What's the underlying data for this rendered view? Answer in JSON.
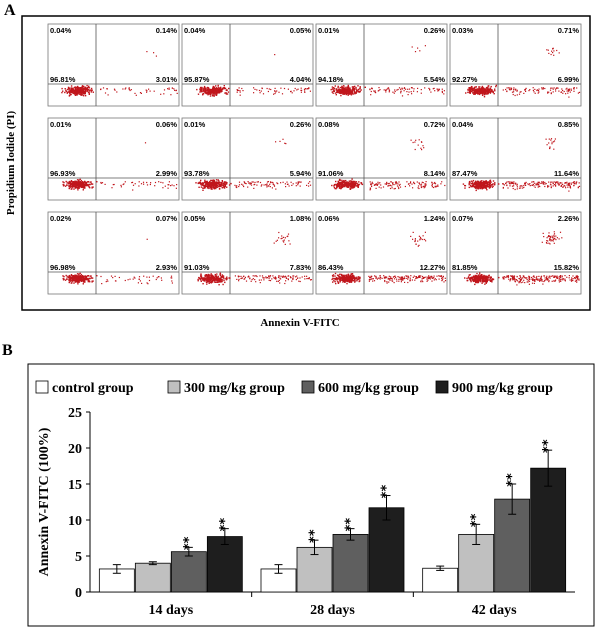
{
  "panel_a": {
    "label": "A",
    "ylabel": "Propidium Iodide (PI)",
    "xlabel": "Annexin V-FITC",
    "grid": [
      [
        {
          "ul": "0.04%",
          "ur": "0.14%",
          "ll": "96.81%",
          "lr": "3.01%"
        },
        {
          "ul": "0.04%",
          "ur": "0.05%",
          "ll": "95.87%",
          "lr": "4.04%"
        },
        {
          "ul": "0.01%",
          "ur": "0.26%",
          "ll": "94.18%",
          "lr": "5.54%"
        },
        {
          "ul": "0.03%",
          "ur": "0.71%",
          "ll": "92.27%",
          "lr": "6.99%"
        }
      ],
      [
        {
          "ul": "0.01%",
          "ur": "0.06%",
          "ll": "96.93%",
          "lr": "2.99%"
        },
        {
          "ul": "0.01%",
          "ur": "0.26%",
          "ll": "93.78%",
          "lr": "5.94%"
        },
        {
          "ul": "0.08%",
          "ur": "0.72%",
          "ll": "91.06%",
          "lr": "8.14%"
        },
        {
          "ul": "0.04%",
          "ur": "0.85%",
          "ll": "87.47%",
          "lr": "11.64%"
        }
      ],
      [
        {
          "ul": "0.02%",
          "ur": "0.07%",
          "ll": "96.98%",
          "lr": "2.93%"
        },
        {
          "ul": "0.05%",
          "ur": "1.08%",
          "ll": "91.03%",
          "lr": "7.83%"
        },
        {
          "ul": "0.06%",
          "ur": "1.24%",
          "ll": "86.43%",
          "lr": "12.27%"
        },
        {
          "ul": "0.07%",
          "ur": "2.26%",
          "ll": "81.85%",
          "lr": "15.82%"
        }
      ]
    ],
    "dot_color": "#c0161c"
  },
  "chart_data": {
    "type": "bar",
    "label": "B",
    "title": "",
    "xlabel": "",
    "ylabel": "Annexin V-FITC (100%)",
    "categories": [
      "14 days",
      "28 days",
      "42 days"
    ],
    "ylim": [
      0,
      25
    ],
    "yticks": [
      0,
      5,
      10,
      15,
      20,
      25
    ],
    "grid": false,
    "legend_position": "top",
    "significance": "**",
    "series": [
      {
        "name": "control group",
        "color": "#ffffff",
        "values": [
          3.2,
          3.2,
          3.3
        ],
        "errors": [
          0.6,
          0.6,
          0.3
        ],
        "sig": [
          false,
          false,
          false
        ]
      },
      {
        "name": "300 mg/kg group",
        "color": "#c0c0c0",
        "values": [
          4.0,
          6.2,
          8.0
        ],
        "errors": [
          0.2,
          1.0,
          1.4
        ],
        "sig": [
          false,
          true,
          true
        ]
      },
      {
        "name": "600 mg/kg group",
        "color": "#5f5f5f",
        "values": [
          5.6,
          8.0,
          12.9
        ],
        "errors": [
          0.6,
          0.8,
          2.1
        ],
        "sig": [
          true,
          true,
          true
        ]
      },
      {
        "name": "900 mg/kg group",
        "color": "#1e1e1e",
        "values": [
          7.7,
          11.7,
          17.2
        ],
        "errors": [
          1.1,
          1.7,
          2.5
        ],
        "sig": [
          true,
          true,
          true
        ]
      }
    ]
  }
}
